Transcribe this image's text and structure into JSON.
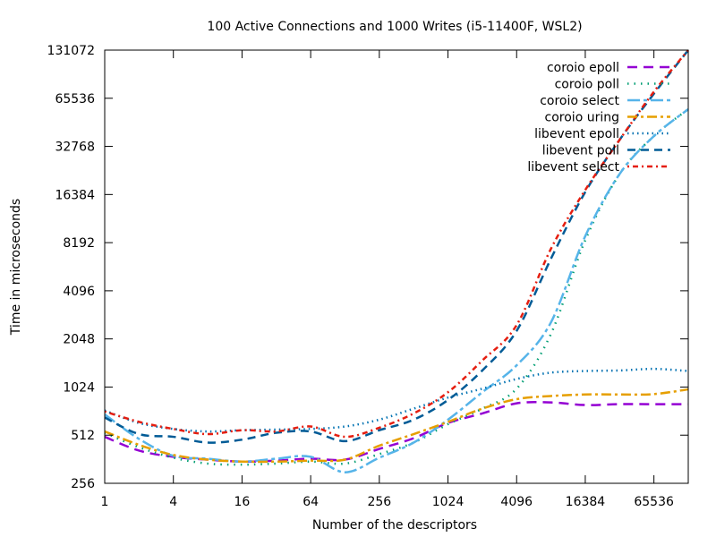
{
  "chart_data": {
    "type": "line",
    "title": "100 Active Connections and 1000 Writes (i5-11400F, WSL2)",
    "xlabel": "Number of the descriptors",
    "ylabel": "Time in microseconds",
    "x_scale": "log2",
    "y_scale": "log2",
    "xlim": [
      1,
      131072
    ],
    "ylim": [
      256,
      131072
    ],
    "x_ticks": [
      1,
      4,
      16,
      64,
      256,
      1024,
      4096,
      16384,
      65536
    ],
    "x_tick_labels": [
      "1",
      "4",
      "16",
      "64",
      "256",
      "1024",
      "4096",
      "16384",
      "65536"
    ],
    "y_ticks": [
      256,
      512,
      1024,
      2048,
      4096,
      8192,
      16384,
      32768,
      65536,
      131072
    ],
    "y_tick_labels": [
      "256",
      "512",
      "1024",
      "2048",
      "4096",
      "8192",
      "16384",
      "32768",
      "65536",
      "131072"
    ],
    "grid": false,
    "legend_position": "top-right",
    "x": [
      1,
      2,
      4,
      8,
      16,
      32,
      64,
      128,
      256,
      512,
      1024,
      2048,
      4096,
      8192,
      16384,
      32768,
      65536,
      131072
    ],
    "series": [
      {
        "name": "coroio epoll",
        "color": "#9400d3",
        "dash": "11,7",
        "width": 2.5,
        "values": [
          500,
          410,
          375,
          360,
          350,
          355,
          365,
          360,
          420,
          490,
          610,
          700,
          810,
          820,
          790,
          800,
          800,
          800
        ]
      },
      {
        "name": "coroio poll",
        "color": "#009e73",
        "dash": "1.5,6",
        "width": 2.5,
        "values": [
          530,
          430,
          370,
          340,
          335,
          340,
          350,
          340,
          390,
          460,
          600,
          750,
          1000,
          2200,
          8500,
          22000,
          38000,
          56000
        ]
      },
      {
        "name": "coroio select",
        "color": "#56b4e9",
        "dash": "14,4,4,4",
        "width": 2.5,
        "values": [
          690,
          485,
          380,
          365,
          350,
          365,
          375,
          300,
          370,
          460,
          640,
          950,
          1400,
          2600,
          9000,
          22000,
          38000,
          56000
        ]
      },
      {
        "name": "coroio uring",
        "color": "#e69f00",
        "dash": "11,4,3,4",
        "width": 2.5,
        "values": [
          540,
          445,
          385,
          360,
          350,
          350,
          355,
          360,
          440,
          520,
          620,
          750,
          860,
          900,
          920,
          920,
          925,
          990
        ]
      },
      {
        "name": "libevent epoll",
        "color": "#0072b2",
        "dash": "1.5,4",
        "width": 2.5,
        "values": [
          730,
          610,
          560,
          540,
          550,
          555,
          560,
          580,
          640,
          750,
          880,
          1000,
          1150,
          1260,
          1290,
          1300,
          1330,
          1290
        ]
      },
      {
        "name": "libevent poll",
        "color": "#005b96",
        "dash": "9,6",
        "width": 2.5,
        "values": [
          660,
          520,
          500,
          460,
          480,
          530,
          540,
          470,
          550,
          640,
          850,
          1300,
          2300,
          6500,
          17000,
          36000,
          70000,
          131000
        ]
      },
      {
        "name": "libevent select",
        "color": "#e51e10",
        "dash": "2,4,6,4",
        "width": 2.5,
        "values": [
          720,
          620,
          560,
          520,
          550,
          540,
          580,
          500,
          570,
          700,
          950,
          1500,
          2500,
          7500,
          17500,
          36000,
          72000,
          131000
        ]
      }
    ]
  }
}
